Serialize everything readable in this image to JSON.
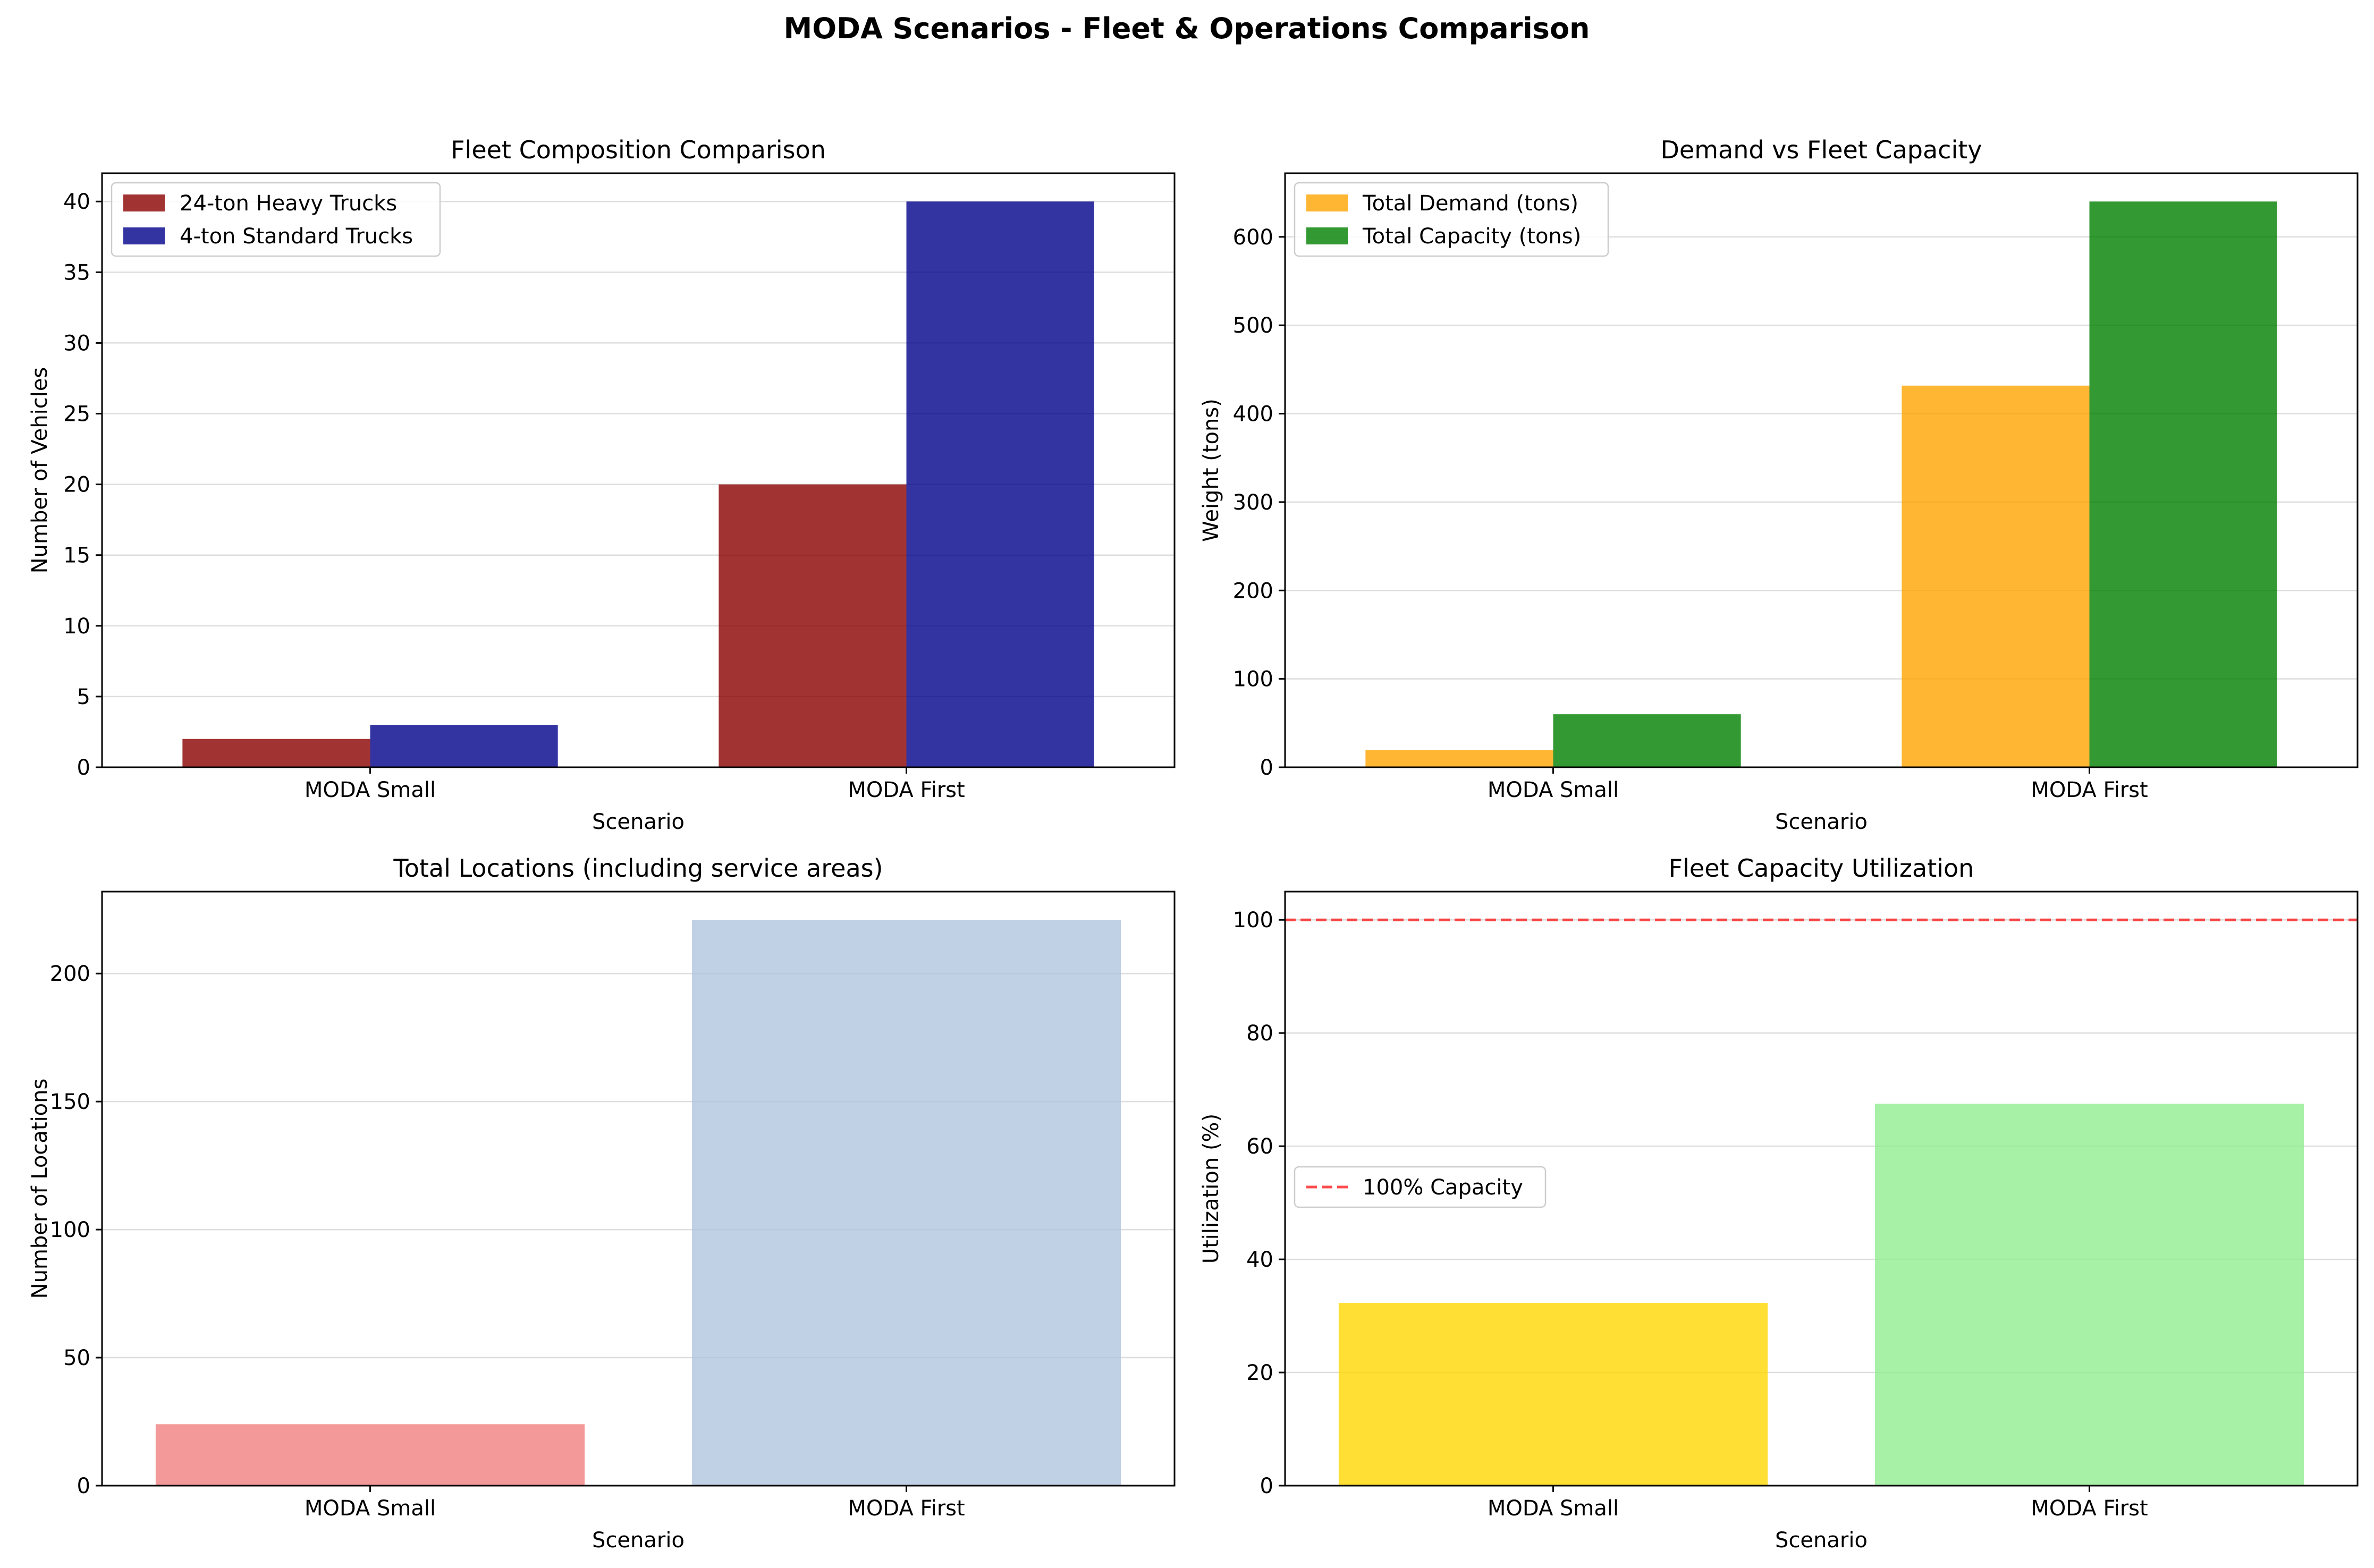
{
  "suptitle": "MODA Scenarios - Fleet & Operations Comparison",
  "chart_data": [
    {
      "type": "bar",
      "title": "Fleet Composition Comparison",
      "xlabel": "Scenario",
      "ylabel": "Number of Vehicles",
      "categories": [
        "MODA Small",
        "MODA First"
      ],
      "series": [
        {
          "name": "24-ton Heavy Trucks",
          "values": [
            2,
            20
          ],
          "color": "#8b0000"
        },
        {
          "name": "4-ton Standard Trucks",
          "values": [
            3,
            40
          ],
          "color": "#00008b"
        }
      ],
      "bar_alpha": 0.8,
      "ylim": [
        0,
        42
      ],
      "yticks": [
        0,
        5,
        10,
        15,
        20,
        25,
        30,
        35,
        40
      ],
      "grid": "y",
      "legend": "top-left"
    },
    {
      "type": "bar",
      "title": "Demand vs Fleet Capacity",
      "xlabel": "Scenario",
      "ylabel": "Weight (tons)",
      "categories": [
        "MODA Small",
        "MODA First"
      ],
      "series": [
        {
          "name": "Total Demand (tons)",
          "values": [
            19.4,
            431.7
          ],
          "color": "#ffa500"
        },
        {
          "name": "Total Capacity (tons)",
          "values": [
            60,
            640
          ],
          "color": "#008000"
        }
      ],
      "bar_alpha": 0.8,
      "ylim": [
        0,
        672
      ],
      "yticks": [
        0,
        100,
        200,
        300,
        400,
        500,
        600
      ],
      "grid": "y",
      "legend": "top-left"
    },
    {
      "type": "bar",
      "title": "Total Locations (including service areas)",
      "xlabel": "Scenario",
      "ylabel": "Number of Locations",
      "categories": [
        "MODA Small",
        "MODA First"
      ],
      "values": [
        24,
        221
      ],
      "colors": [
        "#f08080",
        "#b0c4de"
      ],
      "bar_alpha": 0.8,
      "ylim": [
        0,
        232
      ],
      "yticks": [
        0,
        50,
        100,
        150,
        200
      ],
      "grid": "y"
    },
    {
      "type": "bar",
      "title": "Fleet Capacity Utilization",
      "xlabel": "Scenario",
      "ylabel": "Utilization (%)",
      "categories": [
        "MODA Small",
        "MODA First"
      ],
      "values": [
        32.3,
        67.5
      ],
      "colors": [
        "#ffd700",
        "#90ee90"
      ],
      "bar_alpha": 0.8,
      "ylim": [
        0,
        105
      ],
      "yticks": [
        0,
        20,
        40,
        60,
        80,
        100
      ],
      "grid": "y",
      "reference_line": {
        "y": 100,
        "name": "100% Capacity",
        "color": "#ff0000",
        "style": "dashed"
      },
      "legend": "center-left"
    }
  ]
}
